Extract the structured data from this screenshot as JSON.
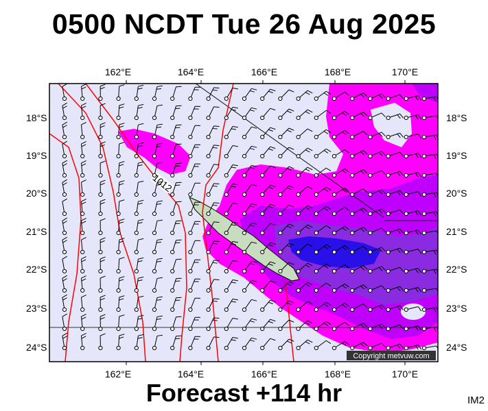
{
  "header": {
    "title": "0500 NCDT Tue 26 Aug 2025"
  },
  "footer": {
    "forecast": "Forecast +114 hr",
    "corner_label": "IM2"
  },
  "map": {
    "copyright": "Copyright metvuw.com",
    "isobar_label": "1012",
    "lon_labels": [
      "162°E",
      "164°E",
      "166°E",
      "168°E",
      "170°E"
    ],
    "lat_labels": [
      "18°S",
      "19°S",
      "20°S",
      "21°S",
      "22°S",
      "23°S",
      "24°S"
    ],
    "colors": {
      "background": "#e6e6fa",
      "rain_light": "#ff00ff",
      "rain_medium": "#c000ff",
      "rain_heavy": "#8a2be2",
      "rain_heaviest": "#1a00ff",
      "isobar": "#ff0000",
      "land": "#c8dcc0"
    }
  }
}
